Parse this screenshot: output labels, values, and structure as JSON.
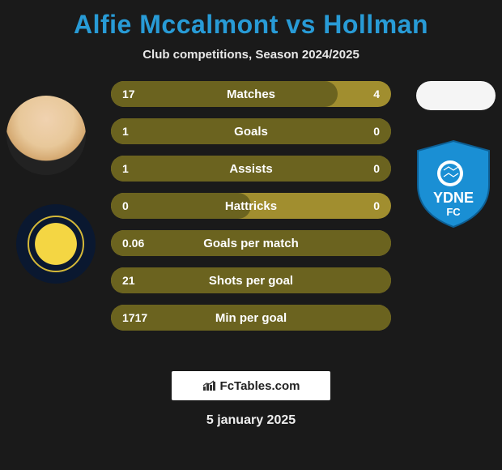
{
  "title_color": "#289bd6",
  "player1": "Alfie Mccalmont",
  "vs": "vs",
  "player2": "Hollman",
  "subtitle": "Club competitions, Season 2024/2025",
  "bars": {
    "bg_color": "#a18e2f",
    "fill_color": "#6b631f",
    "rows": [
      {
        "left": "17",
        "label": "Matches",
        "right": "4",
        "fill_pct": 81
      },
      {
        "left": "1",
        "label": "Goals",
        "right": "0",
        "fill_pct": 100
      },
      {
        "left": "1",
        "label": "Assists",
        "right": "0",
        "fill_pct": 100
      },
      {
        "left": "0",
        "label": "Hattricks",
        "right": "0",
        "fill_pct": 50
      },
      {
        "left": "0.06",
        "label": "Goals per match",
        "right": "",
        "fill_pct": 100
      },
      {
        "left": "21",
        "label": "Shots per goal",
        "right": "",
        "fill_pct": 100
      },
      {
        "left": "1717",
        "label": "Min per goal",
        "right": "",
        "fill_pct": 100
      }
    ]
  },
  "badge_right": {
    "shield_fill": "#1a8fd4",
    "shield_stroke": "#0d5f94",
    "text": "YDNE",
    "subtext": "FC"
  },
  "brand": "FcTables.com",
  "date": "5 january 2025"
}
